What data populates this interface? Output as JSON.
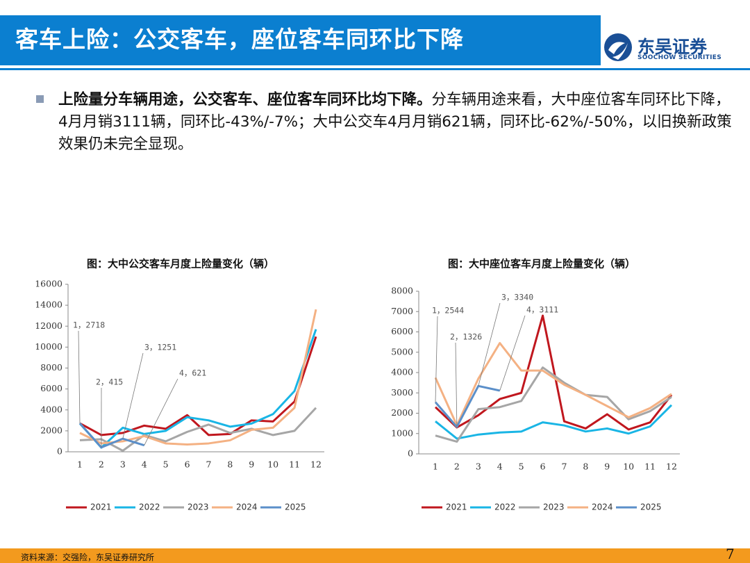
{
  "header": {
    "title": "客车上险：公交客车，座位客车同环比下降",
    "logo_cn": "东吴证券",
    "logo_en": "SOOCHOW SECURITIES"
  },
  "body": {
    "bold": "上险量分车辆用途，公交客车、座位客车同环比均下降。",
    "text": "分车辆用途来看，大中座位客车同环比下降，4月月销3111辆，同环比-43%/-7%；大中公交车4月月销621辆，同环比-62%/-50%，以旧换新政策效果仍未完全显现。"
  },
  "chart_data": [
    {
      "type": "line",
      "title": "图：大中公交客车月度上险量变化（辆）",
      "categories": [
        "1",
        "2",
        "3",
        "4",
        "5",
        "6",
        "7",
        "8",
        "9",
        "10",
        "11",
        "12"
      ],
      "ylim": [
        0,
        16000
      ],
      "yticks": [
        0,
        2000,
        4000,
        6000,
        8000,
        10000,
        12000,
        14000,
        16000
      ],
      "series": [
        {
          "name": "2021",
          "color": "#c0171e",
          "values": [
            2718,
            1600,
            1800,
            2500,
            2200,
            3500,
            1600,
            1700,
            3000,
            2900,
            4800,
            11000
          ]
        },
        {
          "name": "2022",
          "color": "#19b5e5",
          "values": [
            2700,
            400,
            2300,
            1700,
            2000,
            3300,
            3000,
            2400,
            2700,
            3600,
            5800,
            11700
          ]
        },
        {
          "name": "2023",
          "color": "#a6a6a6",
          "values": [
            1100,
            1200,
            100,
            1600,
            1000,
            1900,
            2600,
            1800,
            2200,
            1600,
            2000,
            4200
          ]
        },
        {
          "name": "2024",
          "color": "#f4b183",
          "values": [
            1800,
            800,
            1000,
            1500,
            800,
            700,
            800,
            1100,
            2100,
            2300,
            4200,
            13600
          ]
        },
        {
          "name": "2025",
          "color": "#5b8fc9",
          "values": [
            2718,
            415,
            1251,
            621,
            null,
            null,
            null,
            null,
            null,
            null,
            null,
            null
          ]
        }
      ],
      "annotations": [
        "1，2718",
        "2，415",
        "3，1251",
        "4，621"
      ]
    },
    {
      "type": "line",
      "title": "图：大中座位客车月度上险量变化（辆）",
      "categories": [
        "1",
        "2",
        "3",
        "4",
        "5",
        "6",
        "7",
        "8",
        "9",
        "10",
        "11",
        "12"
      ],
      "ylim": [
        0,
        8000
      ],
      "yticks": [
        0,
        1000,
        2000,
        3000,
        4000,
        5000,
        6000,
        7000,
        8000
      ],
      "series": [
        {
          "name": "2021",
          "color": "#c0171e",
          "values": [
            2300,
            1300,
            1900,
            2700,
            3000,
            6800,
            1600,
            1250,
            1950,
            1200,
            1550,
            2900
          ]
        },
        {
          "name": "2022",
          "color": "#19b5e5",
          "values": [
            1600,
            750,
            950,
            1050,
            1100,
            1550,
            1400,
            1100,
            1250,
            1000,
            1350,
            2400
          ]
        },
        {
          "name": "2023",
          "color": "#a6a6a6",
          "values": [
            900,
            600,
            2200,
            2300,
            2600,
            4250,
            3500,
            2900,
            2800,
            1700,
            2100,
            2800
          ]
        },
        {
          "name": "2024",
          "color": "#f4b183",
          "values": [
            3750,
            1400,
            3700,
            5450,
            4100,
            4100,
            3400,
            2900,
            2350,
            1800,
            2250,
            2950
          ]
        },
        {
          "name": "2025",
          "color": "#5b8fc9",
          "values": [
            2544,
            1326,
            3340,
            3111,
            null,
            null,
            null,
            null,
            null,
            null,
            null,
            null
          ]
        }
      ],
      "annotations": [
        "1，2544",
        "2，1326",
        "3，3340",
        "4，3111"
      ]
    }
  ],
  "source": "资料来源：交强险，东吴证券研究所",
  "page": "7"
}
